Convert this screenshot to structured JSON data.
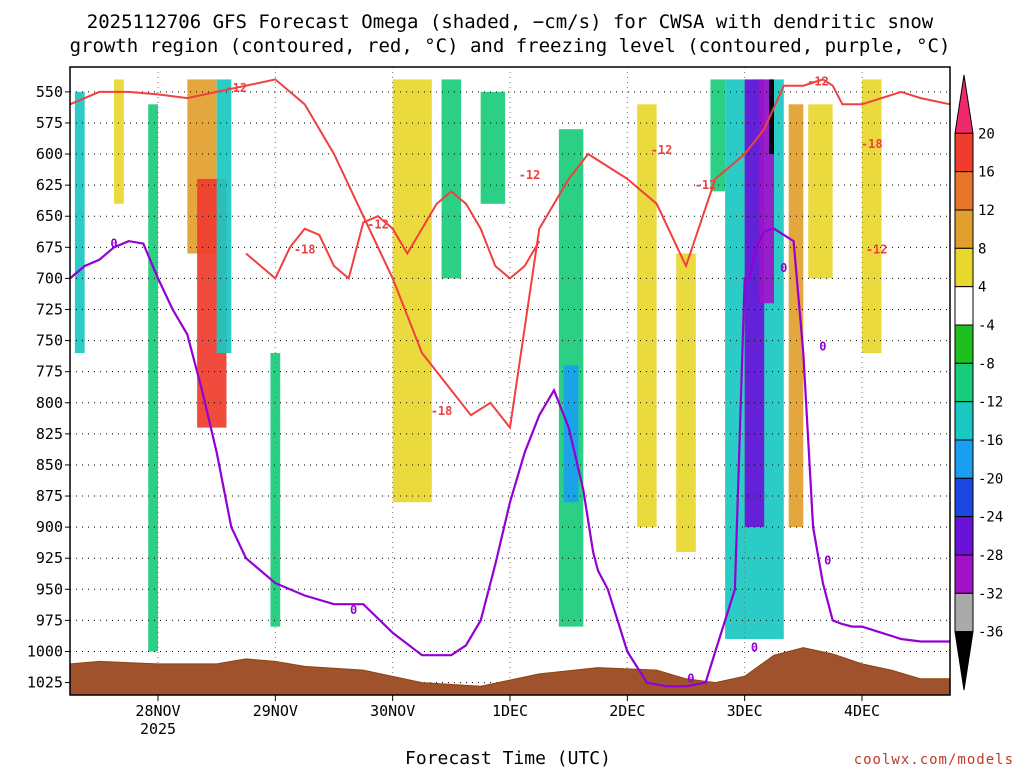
{
  "chart_data": {
    "type": "heatmap",
    "title_line1": "2025112706 GFS Forecast Omega (shaded, −cm/s) for CWSA with dendritic snow",
    "title_line2": "growth region (contoured, red, °C) and freezing level (contoured, purple, °C)",
    "xlabel": "Forecast Time (UTC)",
    "x_ticks": [
      {
        "label": "28NOV",
        "sub": "2025",
        "hour": 12
      },
      {
        "label": "29NOV",
        "sub": "",
        "hour": 36
      },
      {
        "label": "30NOV",
        "sub": "",
        "hour": 60
      },
      {
        "label": "1DEC",
        "sub": "",
        "hour": 84
      },
      {
        "label": "2DEC",
        "sub": "",
        "hour": 108
      },
      {
        "label": "3DEC",
        "sub": "",
        "hour": 132
      },
      {
        "label": "4DEC",
        "sub": "",
        "hour": 156
      }
    ],
    "x_range_hours": [
      -6,
      174
    ],
    "y_ticks": [
      "550",
      "575",
      "600",
      "625",
      "650",
      "675",
      "700",
      "725",
      "750",
      "775",
      "800",
      "825",
      "850",
      "875",
      "900",
      "925",
      "950",
      "975",
      "1000",
      "1025"
    ],
    "y_range_hpa": [
      530,
      1035
    ],
    "colorbar": {
      "labels": [
        "20",
        "16",
        "12",
        "8",
        "4",
        "-4",
        "-8",
        "-12",
        "-16",
        "-20",
        "-24",
        "-28",
        "-32",
        "-36"
      ],
      "colors": [
        "#ee2a6b",
        "#f03c2e",
        "#e8762a",
        "#e1a02e",
        "#e9d72e",
        "#ffffff",
        "#1fbf1f",
        "#19cc7a",
        "#19c8c0",
        "#1a9ef0",
        "#1a47e0",
        "#6a12d8",
        "#a012c8",
        "#aaaaaa",
        "#000000"
      ]
    },
    "red_contour_labels": [
      "-12",
      "-18",
      "-12",
      "-18",
      "-12",
      "-12",
      "-12",
      "-12",
      "-18",
      "-12"
    ],
    "purple_contour_labels": [
      "0",
      "0",
      "0",
      "0",
      "0",
      "0",
      "0"
    ],
    "freezing_level_series": {
      "name": "freezing level 0°C",
      "x_hours": [
        -6,
        -3,
        0,
        3,
        6,
        9,
        12,
        15,
        18,
        21,
        24,
        27,
        30,
        36,
        42,
        48,
        54,
        60,
        66,
        72,
        75,
        78,
        81,
        84,
        87,
        90,
        93,
        96,
        99,
        101,
        102,
        104,
        106,
        108,
        112,
        116,
        120,
        124,
        126,
        128,
        130,
        132,
        133,
        134,
        135,
        136,
        138,
        140,
        142,
        144,
        146,
        148,
        150,
        152,
        154,
        156,
        160,
        164,
        168,
        174
      ],
      "y_hpa": [
        700,
        690,
        685,
        675,
        670,
        672,
        700,
        725,
        745,
        790,
        840,
        900,
        925,
        945,
        955,
        962,
        962,
        985,
        1003,
        1003,
        995,
        975,
        930,
        880,
        840,
        810,
        790,
        820,
        870,
        920,
        935,
        950,
        975,
        1000,
        1025,
        1028,
        1028,
        1025,
        1000,
        975,
        950,
        700,
        700,
        680,
        670,
        662,
        660,
        665,
        670,
        760,
        900,
        945,
        975,
        978,
        980,
        980,
        985,
        990,
        992,
        992
      ]
    },
    "dgz_series": [
      {
        "name": "-12°C",
        "x_hours": [
          -6,
          0,
          6,
          12,
          18,
          24,
          30,
          36,
          42,
          48,
          54,
          60,
          66,
          70,
          72,
          76,
          80,
          84,
          90,
          96,
          100,
          104,
          108,
          114,
          120,
          126,
          132,
          136,
          140,
          144,
          148,
          150,
          152,
          156,
          160,
          164,
          168,
          174
        ],
        "y_hpa": [
          560,
          550,
          550,
          552,
          555,
          550,
          545,
          540,
          560,
          600,
          650,
          700,
          760,
          780,
          790,
          810,
          800,
          820,
          660,
          620,
          600,
          610,
          620,
          640,
          690,
          620,
          600,
          580,
          545,
          545,
          540,
          545,
          560,
          560,
          555,
          550,
          555,
          560
        ]
      },
      {
        "name": "-18°C",
        "x_hours": [
          30,
          33,
          36,
          39,
          42,
          45,
          48,
          51,
          54,
          57,
          60,
          63,
          66,
          69,
          72,
          75,
          78,
          81,
          84,
          87,
          90
        ],
        "y_hpa": [
          680,
          690,
          700,
          675,
          660,
          665,
          690,
          700,
          655,
          650,
          660,
          680,
          660,
          640,
          630,
          640,
          660,
          690,
          700,
          690,
          670
        ]
      }
    ],
    "omega_regions_cm_s": [
      {
        "x_hours": [
          -5,
          -3
        ],
        "p_hpa": [
          550,
          760
        ],
        "value": -12
      },
      {
        "x_hours": [
          3,
          5
        ],
        "p_hpa": [
          540,
          640
        ],
        "value": 4
      },
      {
        "x_hours": [
          10,
          12
        ],
        "p_hpa": [
          560,
          1000
        ],
        "value": -8
      },
      {
        "x_hours": [
          18,
          24
        ],
        "p_hpa": [
          540,
          680
        ],
        "value": 8
      },
      {
        "x_hours": [
          20,
          26
        ],
        "p_hpa": [
          620,
          820
        ],
        "value": 16
      },
      {
        "x_hours": [
          24,
          27
        ],
        "p_hpa": [
          540,
          760
        ],
        "value": -12
      },
      {
        "x_hours": [
          35,
          37
        ],
        "p_hpa": [
          760,
          980
        ],
        "value": -8
      },
      {
        "x_hours": [
          60,
          68
        ],
        "p_hpa": [
          540,
          880
        ],
        "value": 4
      },
      {
        "x_hours": [
          70,
          74
        ],
        "p_hpa": [
          540,
          700
        ],
        "value": -8
      },
      {
        "x_hours": [
          78,
          83
        ],
        "p_hpa": [
          550,
          640
        ],
        "value": -8
      },
      {
        "x_hours": [
          94,
          99
        ],
        "p_hpa": [
          580,
          980
        ],
        "value": -8
      },
      {
        "x_hours": [
          95,
          98
        ],
        "p_hpa": [
          770,
          880
        ],
        "value": -16
      },
      {
        "x_hours": [
          110,
          114
        ],
        "p_hpa": [
          560,
          900
        ],
        "value": 4
      },
      {
        "x_hours": [
          118,
          122
        ],
        "p_hpa": [
          680,
          920
        ],
        "value": 4
      },
      {
        "x_hours": [
          125,
          128
        ],
        "p_hpa": [
          540,
          630
        ],
        "value": -8
      },
      {
        "x_hours": [
          128,
          140
        ],
        "p_hpa": [
          540,
          990
        ],
        "value": -12
      },
      {
        "x_hours": [
          132,
          136
        ],
        "p_hpa": [
          540,
          900
        ],
        "value": -24
      },
      {
        "x_hours": [
          135,
          138
        ],
        "p_hpa": [
          540,
          720
        ],
        "value": -28
      },
      {
        "x_hours": [
          137,
          138
        ],
        "p_hpa": [
          540,
          600
        ],
        "value": -36
      },
      {
        "x_hours": [
          141,
          144
        ],
        "p_hpa": [
          560,
          900
        ],
        "value": 8
      },
      {
        "x_hours": [
          145,
          150
        ],
        "p_hpa": [
          560,
          700
        ],
        "value": 4
      },
      {
        "x_hours": [
          156,
          160
        ],
        "p_hpa": [
          540,
          760
        ],
        "value": 4
      }
    ]
  },
  "footer": {
    "credit": "coolwx.com/models"
  }
}
